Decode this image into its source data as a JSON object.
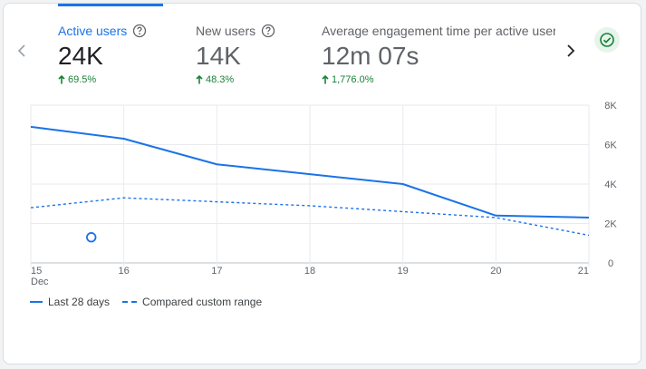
{
  "metrics": [
    {
      "title": "Active users",
      "value": "24K",
      "change": "69.5%",
      "trend": "up",
      "active": true
    },
    {
      "title": "New users",
      "value": "14K",
      "change": "48.3%",
      "trend": "up",
      "active": false
    },
    {
      "title": "Average engagement time per active user",
      "value": "12m 07s",
      "change": "1,776.0%",
      "trend": "up",
      "active": false
    }
  ],
  "icons": {
    "prev": "chevron-left-icon",
    "next": "chevron-right-icon",
    "help": "help-circle-icon",
    "status": "check-circle-icon",
    "trend_up": "arrow-up-icon"
  },
  "colors": {
    "accent": "#1a73e8",
    "positive": "#188038",
    "status_bg": "#e6f4ea",
    "grid": "#e8eaed"
  },
  "chart_data": {
    "type": "line",
    "x_ticks": [
      "15",
      "16",
      "17",
      "18",
      "19",
      "20",
      "21"
    ],
    "x_subtick": "Dec",
    "y_ticks": [
      "0",
      "2K",
      "4K",
      "6K",
      "8K"
    ],
    "ylim": [
      0,
      8000
    ],
    "grid": true,
    "legend_position": "bottom-left",
    "anomaly_marker_x": 15.65,
    "anomaly_marker_y": 1300,
    "series": [
      {
        "name": "Last 28 days",
        "style": "solid",
        "x": [
          15,
          16,
          17,
          18,
          19,
          20,
          21
        ],
        "values": [
          6900,
          6300,
          5000,
          4500,
          4000,
          2400,
          2300
        ]
      },
      {
        "name": "Compared custom range",
        "style": "dashed",
        "x": [
          15,
          16,
          17,
          18,
          19,
          20,
          21
        ],
        "values": [
          2800,
          3300,
          3100,
          2900,
          2600,
          2300,
          1400
        ]
      }
    ]
  },
  "legend": {
    "items": [
      "Last 28 days",
      "Compared custom range"
    ]
  }
}
